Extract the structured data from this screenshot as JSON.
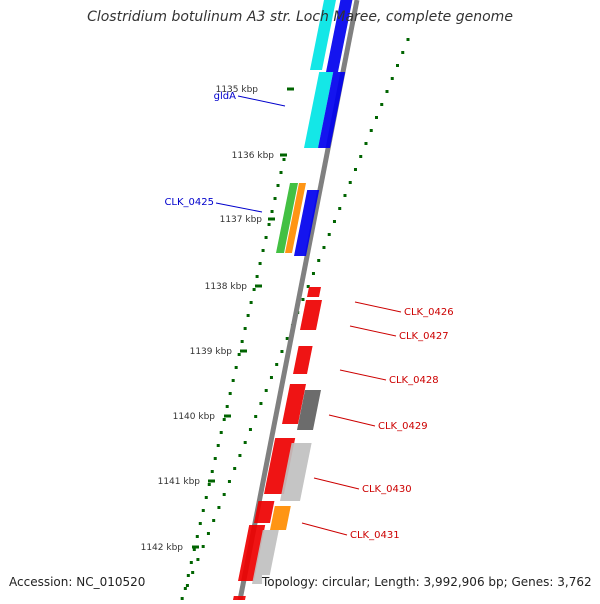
{
  "title": "Clostridium botulinum A3 str. Loch Maree, complete genome",
  "footer": {
    "accession": "Accession: NC_010520",
    "summary": "Topology: circular; Length: 3,992,906 bp; Genes: 3,762"
  },
  "ticks": [
    "1135 kbp",
    "1136 kbp",
    "1137 kbp",
    "1138 kbp",
    "1139 kbp",
    "1140 kbp",
    "1141 kbp",
    "1142 kbp"
  ],
  "gene_labels": {
    "forward": [
      "gldA",
      "CLK_0425"
    ],
    "reverse": [
      "CLK_0426",
      "CLK_0427",
      "CLK_0428",
      "CLK_0429",
      "CLK_0430",
      "CLK_0431"
    ]
  },
  "colors": {
    "backbone": "#808080",
    "tick": "#006400",
    "label_forward": "#0000cc",
    "label_reverse": "#cc0000",
    "cyan": "#00e5e5",
    "blue": "#0000ee",
    "green": "#33bb33",
    "orange": "#ff8c00",
    "red": "#ee0000",
    "dark_gray": "#606060",
    "light_gray": "#c0c0c0"
  }
}
